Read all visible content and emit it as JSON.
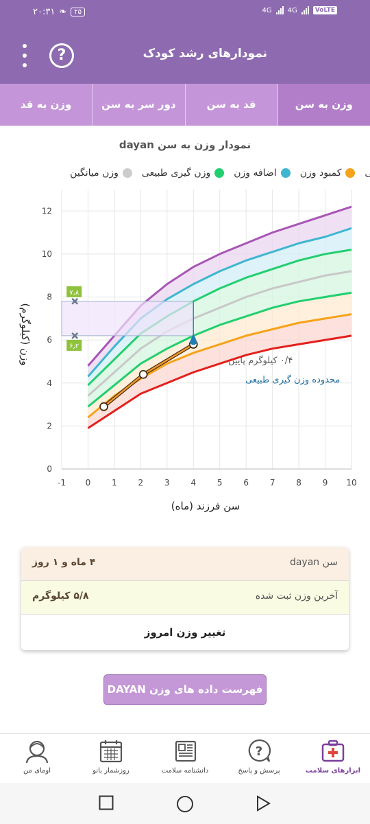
{
  "status_bar": {
    "time": "۲۰:۳۱",
    "battery_level": "۲۵",
    "network_1": "4G",
    "network_2": "4G",
    "volte": "VoLTE"
  },
  "app_bar": {
    "title": "نمودارهای رشد کودک",
    "help_icon": "question-circle-icon",
    "menu_icon": "more-vertical-icon"
  },
  "tabs": [
    {
      "label": "وزن به سن",
      "active": true
    },
    {
      "label": "قد به سن",
      "active": false
    },
    {
      "label": "دور سر به سن",
      "active": false
    },
    {
      "label": "وزن به قد",
      "active": false
    }
  ],
  "chart_title": "نمودار وزن به سن dayan",
  "legend": [
    {
      "label": "نی",
      "color": "#a855b5"
    },
    {
      "label": "کمبود وزن",
      "color": "#f5a31a"
    },
    {
      "label": "اضافه وزن",
      "color": "#3fb6d0"
    },
    {
      "label": "وزن گیری طبیعی",
      "color": "#22cf6f"
    },
    {
      "label": "وزن میانگین",
      "color": "#cccccc"
    }
  ],
  "chart_data": {
    "type": "line",
    "xlabel": "سن فرزند (ماه)",
    "ylabel": "وزن (کیلوگرم)",
    "xlim": [
      -1,
      10
    ],
    "ylim": [
      0,
      13
    ],
    "x_ticks": [
      "-1",
      "0",
      "1",
      "2",
      "3",
      "4",
      "5",
      "6",
      "7",
      "8",
      "9",
      "10"
    ],
    "y_ticks": [
      "0",
      "2",
      "4",
      "6",
      "8",
      "10",
      "12"
    ],
    "grid": true,
    "x": [
      0,
      1,
      2,
      3,
      4,
      5,
      6,
      7,
      8,
      9,
      10
    ],
    "series": [
      {
        "color": "#a855b5",
        "values": [
          4.8,
          6.2,
          7.6,
          8.6,
          9.4,
          10.0,
          10.5,
          11.0,
          11.4,
          11.8,
          12.2
        ]
      },
      {
        "color": "#3fb6d0",
        "values": [
          4.3,
          5.7,
          7.0,
          7.9,
          8.6,
          9.2,
          9.7,
          10.1,
          10.5,
          10.8,
          11.2
        ]
      },
      {
        "color": "#22cf6f",
        "values": [
          3.9,
          5.1,
          6.3,
          7.1,
          7.8,
          8.4,
          8.9,
          9.3,
          9.7,
          10.0,
          10.2
        ]
      },
      {
        "color": "#c8c8c8",
        "values": [
          3.4,
          4.5,
          5.6,
          6.4,
          7.0,
          7.5,
          8.0,
          8.4,
          8.7,
          9.0,
          9.2
        ]
      },
      {
        "color": "#22cf6f",
        "values": [
          2.9,
          3.9,
          4.9,
          5.6,
          6.2,
          6.7,
          7.1,
          7.5,
          7.8,
          8.0,
          8.2
        ]
      },
      {
        "color": "#f5a31a",
        "values": [
          2.4,
          3.4,
          4.2,
          4.9,
          5.4,
          5.8,
          6.2,
          6.5,
          6.8,
          7.0,
          7.2
        ]
      },
      {
        "color": "#e3201c",
        "values": [
          1.9,
          2.7,
          3.5,
          4.0,
          4.5,
          4.9,
          5.3,
          5.6,
          5.8,
          6.0,
          6.2
        ]
      }
    ],
    "child_points": [
      {
        "x": 0.6,
        "y": 2.9
      },
      {
        "x": 2.1,
        "y": 4.4
      },
      {
        "x": 4.0,
        "y": 5.8
      }
    ],
    "normal_range": {
      "x": 4.0,
      "min": 6.2,
      "max": 7.8,
      "min_label": "۶٫۲",
      "max_label": "۷٫۸"
    },
    "annotations": [
      "۰/۴ کیلوگرم پایین",
      "محدوده وزن گیری طبیعی"
    ]
  },
  "info_card": {
    "age_label": "سن dayan",
    "age_value": "۴ ماه و ۱ روز",
    "weight_label": "آخرین وزن ثبت شده",
    "weight_value": "۵/۸ کیلوگرم",
    "change_button": "تغییر وزن امروز"
  },
  "list_button": "فهرست داده های وزن DAYAN",
  "bottom_nav": [
    {
      "label": "ابزارهای سلامت",
      "icon": "health-kit-icon",
      "active": true
    },
    {
      "label": "پرسش و پاسخ",
      "icon": "question-bubble-icon",
      "active": false
    },
    {
      "label": "دانشنامه سلامت",
      "icon": "newspaper-icon",
      "active": false
    },
    {
      "label": "روزشمار بانو",
      "icon": "calendar-icon",
      "active": false
    },
    {
      "label": "اومای من",
      "icon": "user-avatar-icon",
      "active": false
    }
  ]
}
